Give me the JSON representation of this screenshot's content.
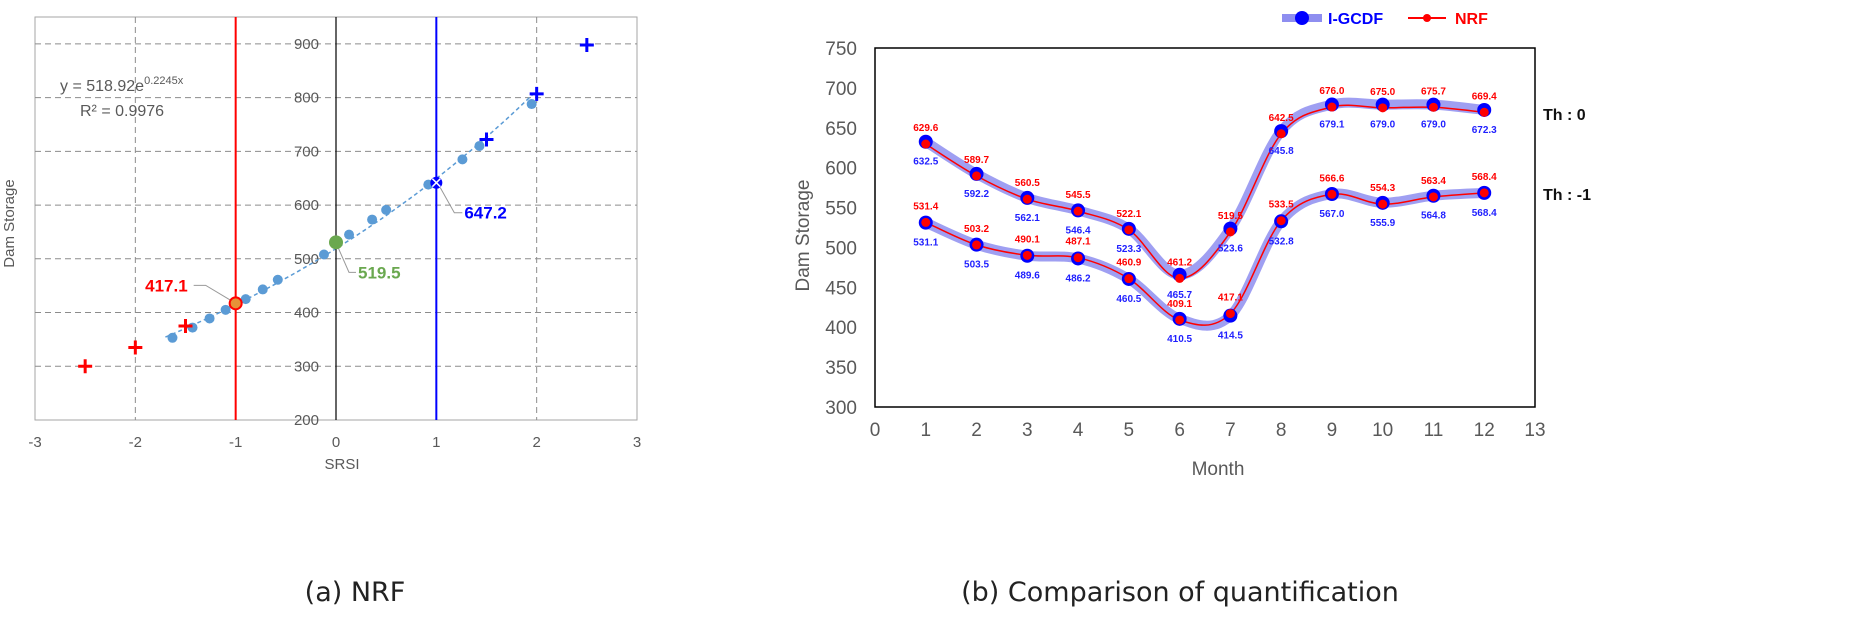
{
  "captions": {
    "a": "(a) NRF",
    "b": "(b) Comparison of quantification"
  },
  "colors": {
    "red": "#ff0000",
    "blue": "#0000ff",
    "green": "#6aa84f",
    "dot": "#5b9bd5",
    "series_band": "#8e8ef0",
    "label_red": "#ff0000",
    "label_blue": "#1f1fff"
  },
  "chart_data": [
    {
      "type": "scatter",
      "xlabel": "SRSI",
      "ylabel": "Dam Storage",
      "xlim": [
        -3,
        3
      ],
      "ylim": [
        200,
        950
      ],
      "x_ticks": [
        "-3",
        "-2",
        "-1",
        "0",
        "1",
        "2",
        "3"
      ],
      "y_ticks": [
        "200",
        "300",
        "400",
        "500",
        "600",
        "700",
        "800",
        "900"
      ],
      "grid": true,
      "equation": {
        "prefix": "y = 518.92e",
        "exponent": "0.2245x",
        "r2": "R² = 0.9976"
      },
      "points": [
        {
          "x": -1.63,
          "y": 353
        },
        {
          "x": -1.43,
          "y": 372
        },
        {
          "x": -1.26,
          "y": 389
        },
        {
          "x": -1.1,
          "y": 405
        },
        {
          "x": -0.9,
          "y": 425
        },
        {
          "x": -0.73,
          "y": 443
        },
        {
          "x": -0.58,
          "y": 461
        },
        {
          "x": -0.12,
          "y": 508
        },
        {
          "x": 0.13,
          "y": 545
        },
        {
          "x": 0.36,
          "y": 573
        },
        {
          "x": 0.5,
          "y": 591
        },
        {
          "x": 0.92,
          "y": 638
        },
        {
          "x": 1.26,
          "y": 685
        },
        {
          "x": 1.43,
          "y": 710
        },
        {
          "x": 1.95,
          "y": 788
        }
      ],
      "red_crosses": [
        {
          "x": -2.5,
          "y": 300
        },
        {
          "x": -2.0,
          "y": 335
        },
        {
          "x": -1.5,
          "y": 375
        }
      ],
      "blue_crosses": [
        {
          "x": 1.5,
          "y": 722
        },
        {
          "x": 2.0,
          "y": 807
        },
        {
          "x": 2.5,
          "y": 898
        }
      ],
      "vlines": [
        {
          "x": -1,
          "color": "red"
        },
        {
          "x": 0,
          "color": "black"
        },
        {
          "x": 1,
          "color": "blue"
        }
      ],
      "highlights": [
        {
          "x": -1,
          "y": 417.1,
          "label": "417.1",
          "color": "red"
        },
        {
          "x": 0,
          "y": 519.5,
          "label": "519.5",
          "color": "green"
        },
        {
          "x": 1,
          "y": 647.2,
          "label": "647.2",
          "color": "blue"
        }
      ]
    },
    {
      "type": "line",
      "xlabel": "Month",
      "ylabel": "Dam Storage",
      "xlim": [
        0,
        13
      ],
      "ylim": [
        300,
        750
      ],
      "x_ticks": [
        "0",
        "1",
        "2",
        "3",
        "4",
        "5",
        "6",
        "7",
        "8",
        "9",
        "10",
        "11",
        "12",
        "13"
      ],
      "y_ticks": [
        "300",
        "350",
        "400",
        "450",
        "500",
        "550",
        "600",
        "650",
        "700",
        "750"
      ],
      "legend_position": "top-right",
      "x": [
        1,
        2,
        3,
        4,
        5,
        6,
        7,
        8,
        9,
        10,
        11,
        12
      ],
      "series": [
        {
          "name": "I-GCDF",
          "group": "Th : 0",
          "values": [
            632.5,
            592.2,
            562.1,
            546.4,
            523.3,
            465.7,
            523.6,
            645.8,
            679.1,
            679.0,
            679.0,
            672.3
          ],
          "labels": [
            "632.5",
            "592.2",
            "562.1",
            "546.4",
            "523.3",
            "465.7",
            "523.6",
            "645.8",
            "679.1",
            "679.0",
            "679.0",
            "672.3"
          ]
        },
        {
          "name": "NRF",
          "group": "Th : 0",
          "values": [
            629.6,
            589.7,
            560.5,
            545.5,
            522.1,
            461.2,
            519.5,
            642.5,
            676.0,
            675.0,
            675.7,
            669.4
          ],
          "labels": [
            "629.6",
            "589.7",
            "560.5",
            "545.5",
            "522.1",
            "461.2",
            "519.5",
            "642.5",
            "676.0",
            "675.0",
            "675.7",
            "669.4"
          ]
        },
        {
          "name": "I-GCDF",
          "group": "Th : -1",
          "values": [
            531.1,
            503.5,
            489.6,
            486.2,
            460.5,
            410.5,
            414.5,
            532.8,
            567.0,
            555.9,
            564.8,
            568.4
          ],
          "labels": [
            "531.1",
            "503.5",
            "489.6",
            "486.2",
            "460.5",
            "410.5",
            "414.5",
            "532.8",
            "567.0",
            "555.9",
            "564.8",
            "568.4"
          ]
        },
        {
          "name": "NRF",
          "group": "Th : -1",
          "values": [
            531.4,
            503.2,
            490.1,
            487.1,
            460.9,
            409.1,
            417.1,
            533.5,
            566.6,
            554.3,
            563.4,
            568.4
          ],
          "labels": [
            "531.4",
            "503.2",
            "490.1",
            "487.1",
            "460.9",
            "409.1",
            "417.1",
            "533.5",
            "566.6",
            "554.3",
            "563.4",
            "568.4"
          ]
        }
      ],
      "legend": [
        "I-GCDF",
        "NRF"
      ],
      "group_labels": [
        "Th : 0",
        "Th : -1"
      ]
    }
  ]
}
